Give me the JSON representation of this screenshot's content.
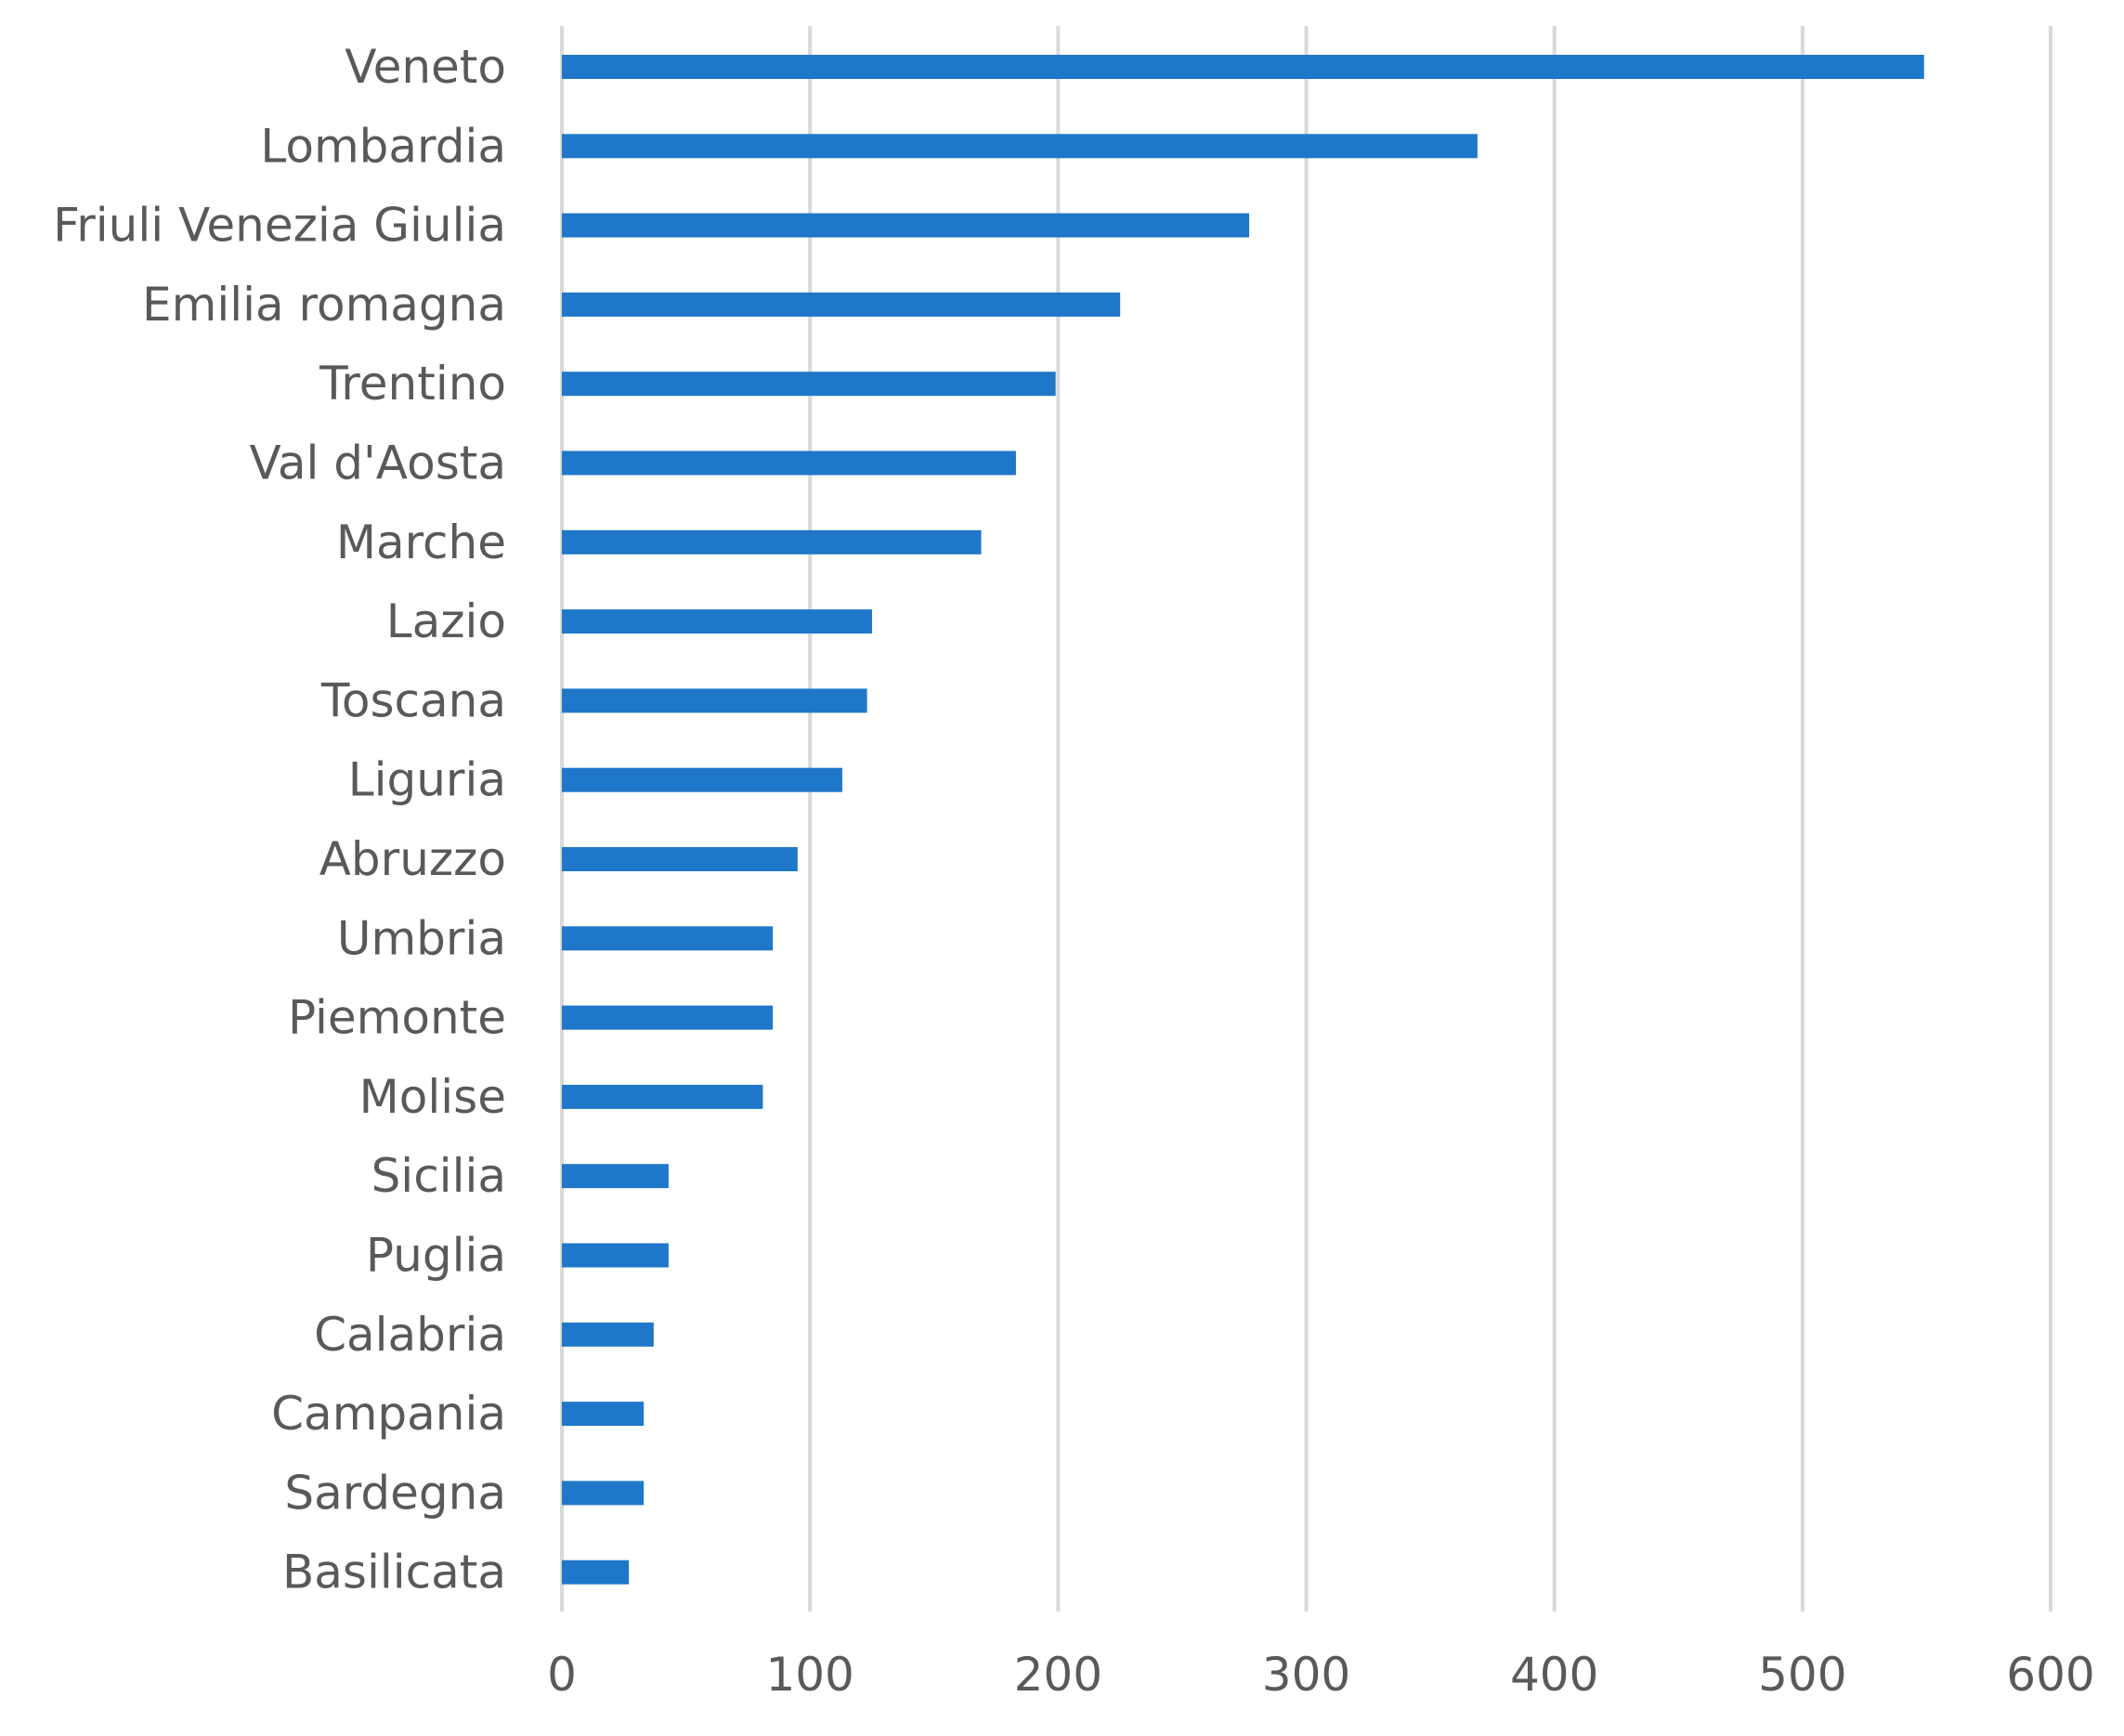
{
  "chart_data": {
    "type": "bar",
    "orientation": "horizontal",
    "categories": [
      "Veneto",
      "Lombardia",
      "Friuli Venezia Giulia",
      "Emilia romagna",
      "Trentino",
      "Val d'Aosta",
      "Marche",
      "Lazio",
      "Toscana",
      "Liguria",
      "Abruzzo",
      "Umbria",
      "Piemonte",
      "Molise",
      "Sicilia",
      "Puglia",
      "Calabria",
      "Campania",
      "Sardegna",
      "Basilicata"
    ],
    "values": [
      549,
      369,
      277,
      225,
      199,
      183,
      169,
      125,
      123,
      113,
      95,
      85,
      85,
      81,
      43,
      43,
      37,
      33,
      33,
      27
    ],
    "xlim": [
      0,
      600
    ],
    "xticks": [
      0,
      100,
      200,
      300,
      400,
      500,
      600
    ],
    "xtick_labels": [
      "0",
      "100",
      "200",
      "300",
      "400",
      "500",
      "600"
    ],
    "grid": true,
    "legend": "none",
    "bar_color": "#1f77c9"
  }
}
